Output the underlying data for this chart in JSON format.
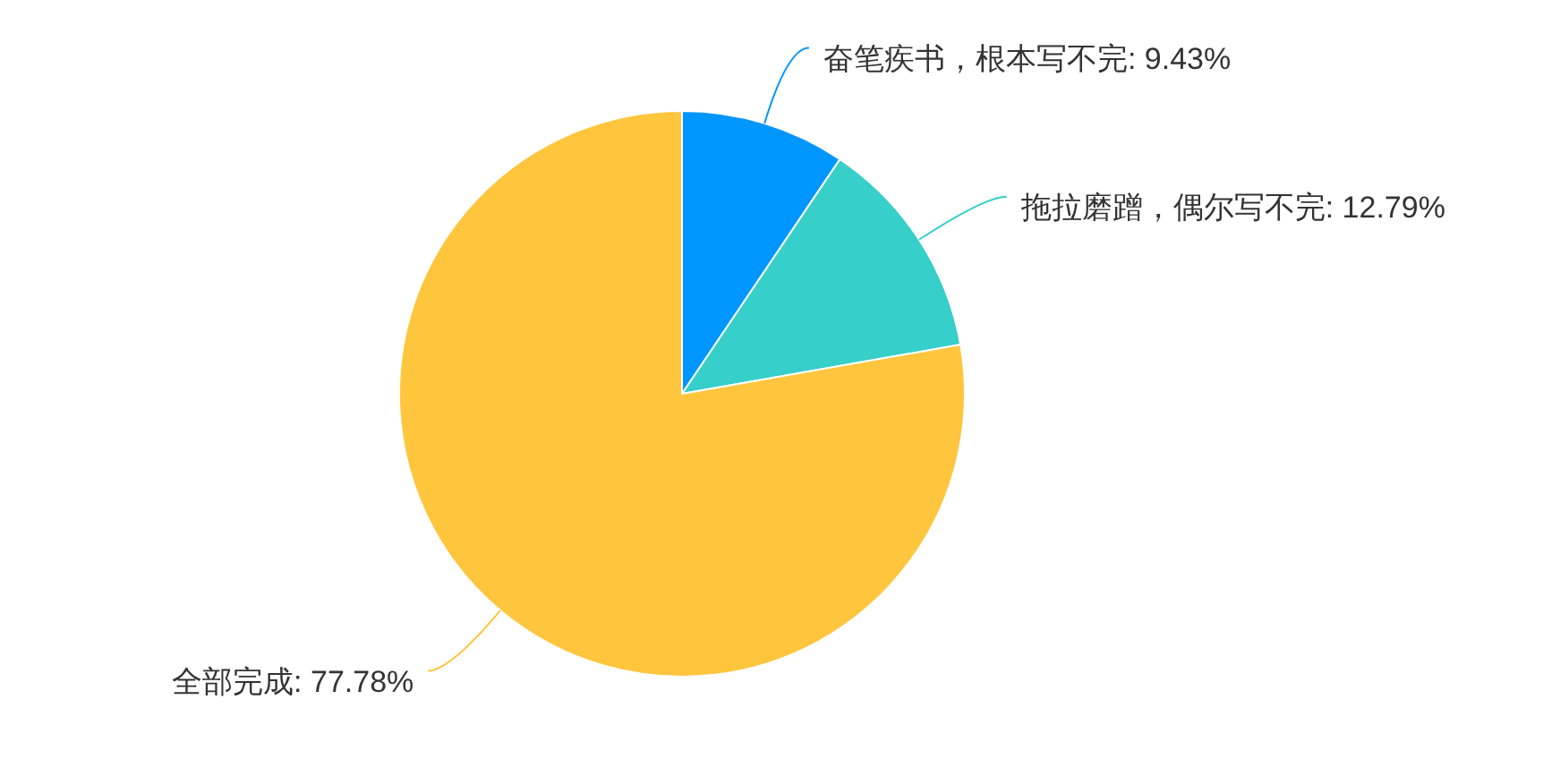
{
  "chart_data": {
    "type": "pie",
    "categories": [
      "奋笔疾书，根本写不完",
      "拖拉磨蹭，偶尔写不完",
      "全部完成"
    ],
    "values": [
      9.43,
      12.79,
      77.78
    ],
    "colors": [
      "#0096ff",
      "#36cfc9",
      "#ffc53d"
    ],
    "value_labels": [
      "9.43%",
      "12.79%",
      "77.78%"
    ]
  }
}
